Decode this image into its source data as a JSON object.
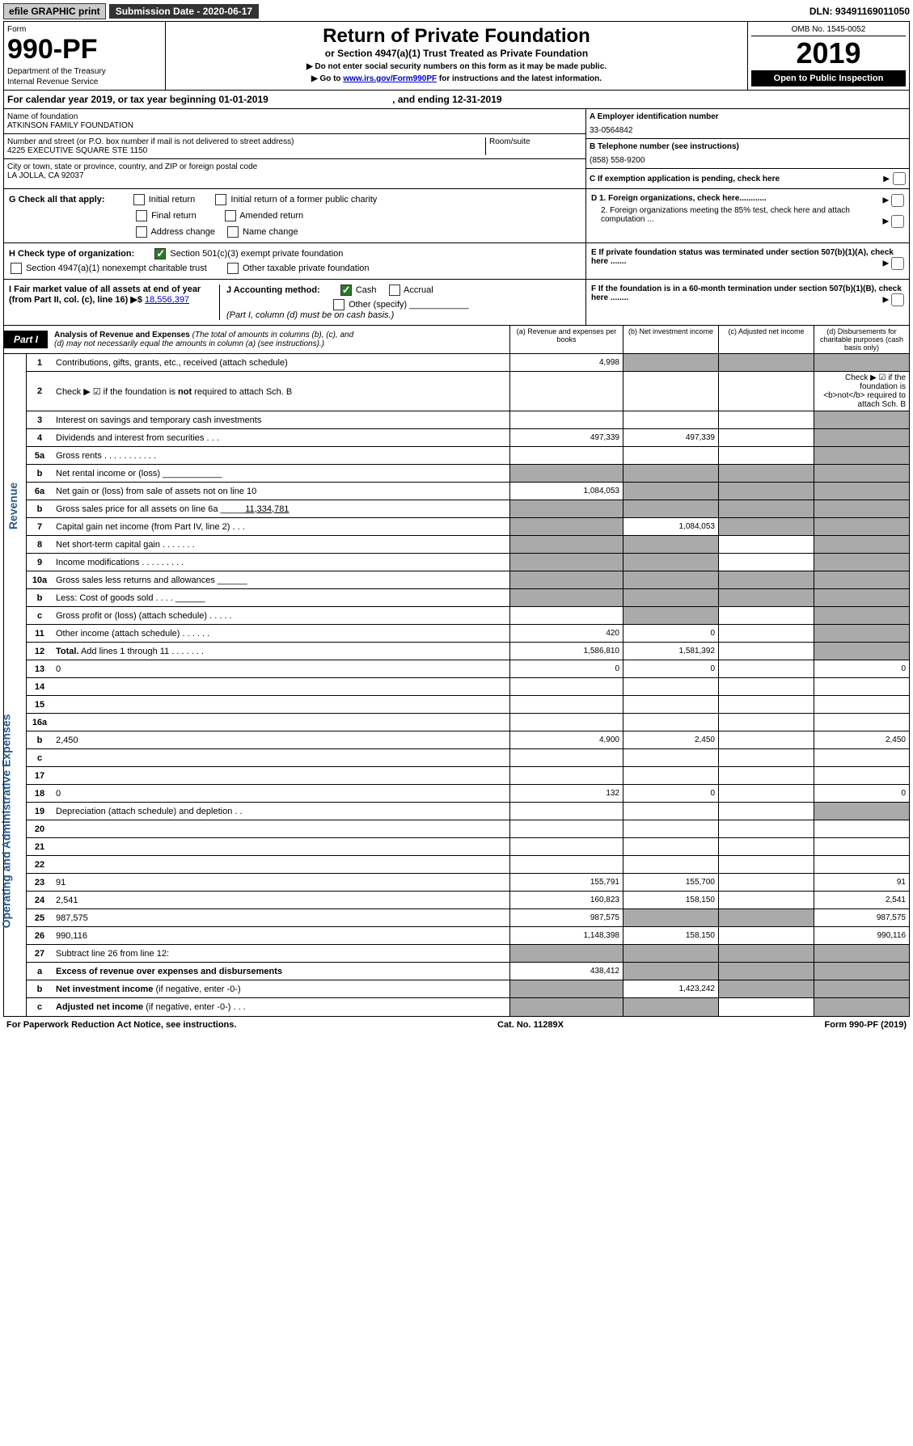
{
  "top": {
    "efile": "efile GRAPHIC print",
    "sub_date": "Submission Date - 2020-06-17",
    "dln": "DLN: 93491169011050"
  },
  "header": {
    "form_label": "Form",
    "form_num": "990-PF",
    "dept1": "Department of the Treasury",
    "dept2": "Internal Revenue Service",
    "title": "Return of Private Foundation",
    "subtitle": "or Section 4947(a)(1) Trust Treated as Private Foundation",
    "note1": "▶ Do not enter social security numbers on this form as it may be made public.",
    "note2": "▶ Go to ",
    "note2_link": "www.irs.gov/Form990PF",
    "note2_end": " for instructions and the latest information.",
    "omb": "OMB No. 1545-0052",
    "year": "2019",
    "open_pub": "Open to Public Inspection"
  },
  "cal_year": {
    "text1": "For calendar year 2019, or tax year beginning 01-01-2019",
    "text2": ", and ending 12-31-2019"
  },
  "info": {
    "name_label": "Name of foundation",
    "name": "ATKINSON FAMILY FOUNDATION",
    "addr_label": "Number and street (or P.O. box number if mail is not delivered to street address)",
    "addr": "4225 EXECUTIVE SQUARE STE 1150",
    "room_label": "Room/suite",
    "city_label": "City or town, state or province, country, and ZIP or foreign postal code",
    "city": "LA JOLLA, CA  92037",
    "a_label": "A Employer identification number",
    "a_val": "33-0564842",
    "b_label": "B Telephone number (see instructions)",
    "b_val": "(858) 558-9200",
    "c_label": "C If exemption application is pending, check here"
  },
  "checks": {
    "g_label": "G Check all that apply:",
    "g_opts": [
      "Initial return",
      "Initial return of a former public charity",
      "Final return",
      "Amended return",
      "Address change",
      "Name change"
    ],
    "h_label": "H Check type of organization:",
    "h_opt1": "Section 501(c)(3) exempt private foundation",
    "h_opt2": "Section 4947(a)(1) nonexempt charitable trust",
    "h_opt3": "Other taxable private foundation",
    "i_label": "I Fair market value of all assets at end of year (from Part II, col. (c), line 16) ▶$ ",
    "i_val": "18,556,397",
    "j_label": "J Accounting method:",
    "j_cash": "Cash",
    "j_accrual": "Accrual",
    "j_other": "Other (specify)",
    "j_note": "(Part I, column (d) must be on cash basis.)",
    "d1": "D 1. Foreign organizations, check here............",
    "d2": "2. Foreign organizations meeting the 85% test, check here and attach computation ...",
    "e": "E  If private foundation status was terminated under section 507(b)(1)(A), check here .......",
    "f": "F  If the foundation is in a 60-month termination under section 507(b)(1)(B), check here ........"
  },
  "part1": {
    "label": "Part I",
    "title": "Analysis of Revenue and Expenses",
    "title_note": " (The total of amounts in columns (b), (c), and (d) may not necessarily equal the amounts in column (a) (see instructions).)",
    "col_a": "(a)   Revenue and expenses per books",
    "col_b": "(b)  Net investment income",
    "col_c": "(c)  Adjusted net income",
    "col_d": "(d)  Disbursements for charitable purposes (cash basis only)"
  },
  "side_labels": {
    "revenue": "Revenue",
    "expenses": "Operating and Administrative Expenses"
  },
  "rows": [
    {
      "n": "1",
      "d": "Contributions, gifts, grants, etc., received (attach schedule)",
      "a": "4,998",
      "ag": false,
      "bg": true,
      "cg": true,
      "dg": true
    },
    {
      "n": "2",
      "d": "Check ▶ ☑ if the foundation is <b>not</b> required to attach Sch. B",
      "span": true
    },
    {
      "n": "3",
      "d": "Interest on savings and temporary cash investments",
      "a": "",
      "b": "",
      "c": "",
      "dg": true
    },
    {
      "n": "4",
      "d": "Dividends and interest from securities   .  .  .",
      "a": "497,339",
      "b": "497,339",
      "c": "",
      "dg": true
    },
    {
      "n": "5a",
      "d": "Gross rents   .  .  .  .  .  .  .  .  .  .  .",
      "a": "",
      "b": "",
      "c": "",
      "dg": true
    },
    {
      "n": "b",
      "d": "Net rental income or (loss)   ____________",
      "ag": true,
      "bg": true,
      "cg": true,
      "dg": true
    },
    {
      "n": "6a",
      "d": "Net gain or (loss) from sale of assets not on line 10",
      "a": "1,084,053",
      "bg": true,
      "cg": true,
      "dg": true
    },
    {
      "n": "b",
      "d": "Gross sales price for all assets on line 6a _____<u>11,334,781</u>",
      "ag": true,
      "bg": true,
      "cg": true,
      "dg": true
    },
    {
      "n": "7",
      "d": "Capital gain net income (from Part IV, line 2)   .  .  .",
      "ag": true,
      "b": "1,084,053",
      "cg": true,
      "dg": true
    },
    {
      "n": "8",
      "d": "Net short-term capital gain   .  .  .  .  .  .  .",
      "ag": true,
      "bg": true,
      "c": "",
      "dg": true
    },
    {
      "n": "9",
      "d": "Income modifications   .  .  .  .  .  .  .  .  .",
      "ag": true,
      "bg": true,
      "c": "",
      "dg": true
    },
    {
      "n": "10a",
      "d": "Gross sales less returns and allowances  ______",
      "ag": true,
      "bg": true,
      "cg": true,
      "dg": true
    },
    {
      "n": "b",
      "d": "Less: Cost of goods sold   .  .  .  .   ______",
      "ag": true,
      "bg": true,
      "cg": true,
      "dg": true
    },
    {
      "n": "c",
      "d": "Gross profit or (loss) (attach schedule)   .  .  .  .  .",
      "a": "",
      "bg": true,
      "c": "",
      "dg": true
    },
    {
      "n": "11",
      "d": "Other income (attach schedule)   .  .  .  .  .  .",
      "a": "420",
      "b": "0",
      "c": "",
      "dg": true
    },
    {
      "n": "12",
      "d": "<b>Total.</b> Add lines 1 through 11   .  .  .  .  .  .  .",
      "a": "1,586,810",
      "b": "1,581,392",
      "c": "",
      "dg": true
    },
    {
      "n": "13",
      "d": "0",
      "a": "0",
      "b": "0",
      "c": ""
    },
    {
      "n": "14",
      "d": "",
      "a": "",
      "b": "",
      "c": ""
    },
    {
      "n": "15",
      "d": "",
      "a": "",
      "b": "",
      "c": ""
    },
    {
      "n": "16a",
      "d": "",
      "a": "",
      "b": "",
      "c": ""
    },
    {
      "n": "b",
      "d": "2,450",
      "a": "4,900",
      "b": "2,450",
      "c": ""
    },
    {
      "n": "c",
      "d": "",
      "a": "",
      "b": "",
      "c": ""
    },
    {
      "n": "17",
      "d": "",
      "a": "",
      "b": "",
      "c": ""
    },
    {
      "n": "18",
      "d": "0",
      "a": "132",
      "b": "0",
      "c": ""
    },
    {
      "n": "19",
      "d": "Depreciation (attach schedule) and depletion   .  .",
      "a": "",
      "b": "",
      "c": "",
      "dg": true
    },
    {
      "n": "20",
      "d": "",
      "a": "",
      "b": "",
      "c": ""
    },
    {
      "n": "21",
      "d": "",
      "a": "",
      "b": "",
      "c": ""
    },
    {
      "n": "22",
      "d": "",
      "a": "",
      "b": "",
      "c": ""
    },
    {
      "n": "23",
      "d": "91",
      "a": "155,791",
      "b": "155,700",
      "c": ""
    },
    {
      "n": "24",
      "d": "2,541",
      "a": "160,823",
      "b": "158,150",
      "c": ""
    },
    {
      "n": "25",
      "d": "987,575",
      "a": "987,575",
      "bg": true,
      "cg": true
    },
    {
      "n": "26",
      "d": "990,116",
      "a": "1,148,398",
      "b": "158,150",
      "c": ""
    },
    {
      "n": "27",
      "d": "Subtract line 26 from line 12:",
      "ag": true,
      "bg": true,
      "cg": true,
      "dg": true
    },
    {
      "n": "a",
      "d": "<b>Excess of revenue over expenses and disbursements</b>",
      "a": "438,412",
      "bg": true,
      "cg": true,
      "dg": true
    },
    {
      "n": "b",
      "d": "<b>Net investment income</b> (if negative, enter -0-)",
      "ag": true,
      "b": "1,423,242",
      "cg": true,
      "dg": true
    },
    {
      "n": "c",
      "d": "<b>Adjusted net income</b> (if negative, enter -0-)   .  .  .",
      "ag": true,
      "bg": true,
      "c": "",
      "dg": true
    }
  ],
  "footer": {
    "left": "For Paperwork Reduction Act Notice, see instructions.",
    "mid": "Cat. No. 11289X",
    "right": "Form 990-PF (2019)"
  }
}
